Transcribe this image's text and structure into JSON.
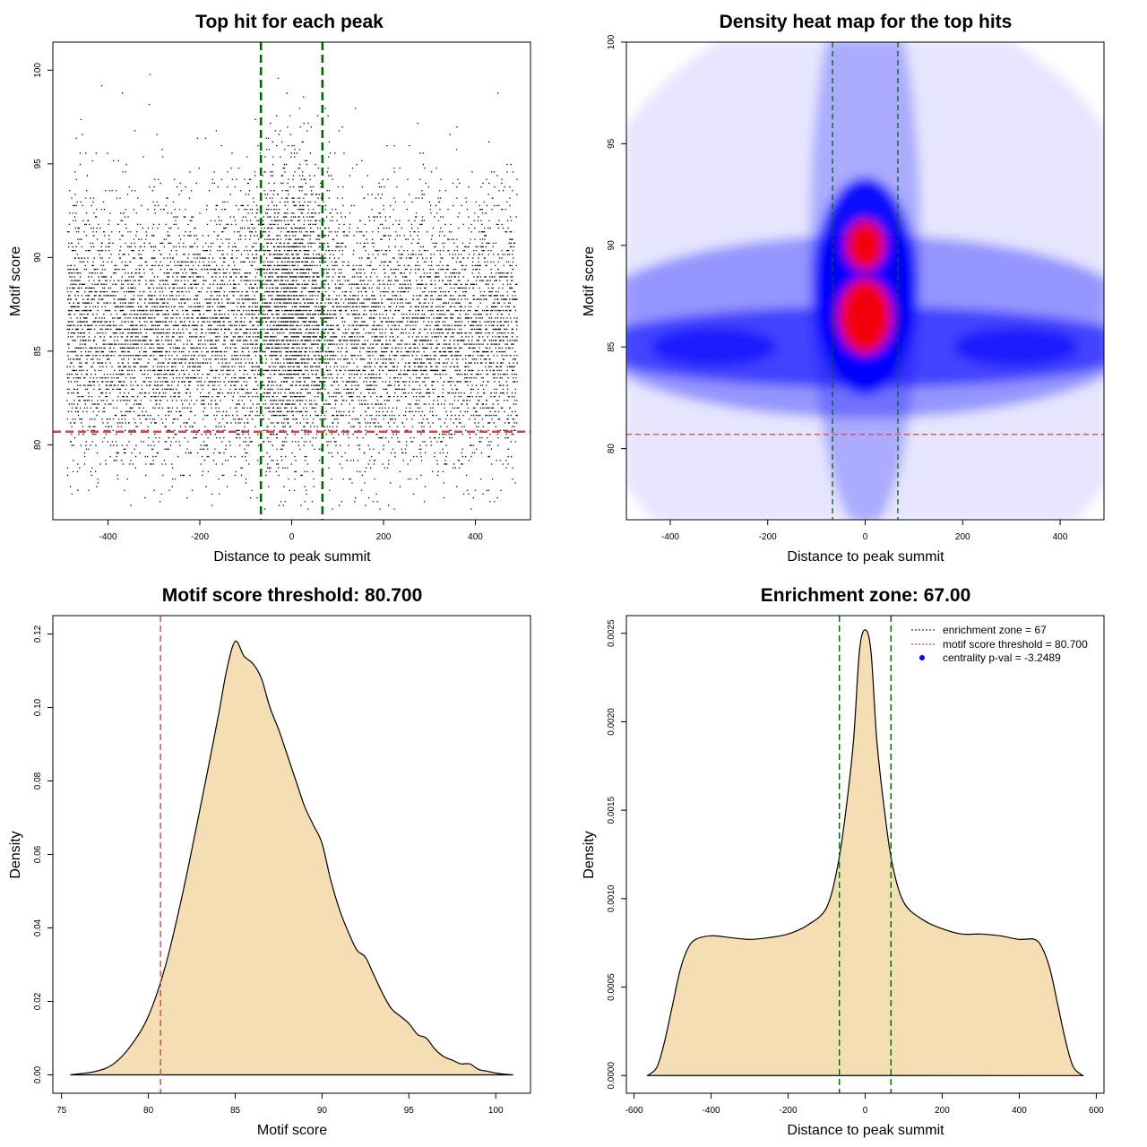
{
  "colors": {
    "threshold_line": "#e04040",
    "zone_line": "#006400",
    "density_fill": "#f5deb3",
    "heat_low": "#ffffff",
    "heat_mid": "#0000ff",
    "heat_high": "#ff0000",
    "points": "#000000",
    "legend_point": "#0000ff"
  },
  "chart_data": [
    {
      "id": "scatter",
      "type": "scatter",
      "title": "Top hit for each peak",
      "xlabel": "Distance to peak summit",
      "ylabel": "Motif score",
      "xlim": [
        -520,
        520
      ],
      "ylim": [
        76,
        101.5
      ],
      "xticks": [
        "-400",
        "-200",
        "0",
        "200",
        "400"
      ],
      "xtick_values": [
        -400,
        -200,
        0,
        200,
        400
      ],
      "yticks": [
        "80",
        "85",
        "90",
        "95",
        "100"
      ],
      "ytick_values": [
        80,
        85,
        90,
        95,
        100
      ],
      "point_distribution": {
        "x_range": [
          -490,
          490
        ],
        "score_peak": 86,
        "score_sd": 3.5,
        "center_enrichment_sd": 40
      },
      "hlines": [
        80.7
      ],
      "vlines": [
        -67,
        67
      ]
    },
    {
      "id": "heatmap",
      "type": "heatmap",
      "title": "Density heat map for the top hits",
      "xlabel": "Distance to peak summit",
      "ylabel": "Motif score",
      "xlim": [
        -490,
        490
      ],
      "ylim": [
        76.5,
        100
      ],
      "xticks": [
        "-400",
        "-200",
        "0",
        "200",
        "400"
      ],
      "xtick_values": [
        -400,
        -200,
        0,
        200,
        400
      ],
      "yticks": [
        "80",
        "85",
        "90",
        "95",
        "100"
      ],
      "ytick_values": [
        80,
        85,
        90,
        95,
        100
      ],
      "density_hotspots": [
        {
          "x": 0,
          "score": 86.5,
          "intensity": "high"
        },
        {
          "x": 0,
          "score": 90,
          "intensity": "high"
        },
        {
          "x": -310,
          "score": 85,
          "intensity": "medium"
        },
        {
          "x": 310,
          "score": 85,
          "intensity": "medium"
        }
      ],
      "hlines": [
        80.7
      ],
      "vlines": [
        -67,
        67
      ]
    },
    {
      "id": "score_density",
      "type": "area",
      "title": "Motif score threshold: 80.700",
      "xlabel": "Motif score",
      "ylabel": "Density",
      "xlim": [
        74.5,
        102
      ],
      "ylim": [
        -0.005,
        0.125
      ],
      "xticks": [
        "75",
        "80",
        "85",
        "90",
        "95",
        "100"
      ],
      "xtick_values": [
        75,
        80,
        85,
        90,
        95,
        100
      ],
      "yticks": [
        "0.00",
        "0.02",
        "0.04",
        "0.06",
        "0.08",
        "0.10",
        "0.12"
      ],
      "ytick_values": [
        0,
        0.02,
        0.04,
        0.06,
        0.08,
        0.1,
        0.12
      ],
      "x": [
        75.5,
        77,
        78,
        79,
        80,
        81,
        82,
        83,
        84,
        84.5,
        85,
        85.5,
        86,
        86.5,
        87,
        87.5,
        88,
        88.5,
        89,
        89.5,
        90,
        90.5,
        91,
        91.5,
        92,
        92.5,
        93,
        93.5,
        94,
        94.5,
        95,
        95.5,
        96,
        96.5,
        97,
        97.5,
        98,
        98.5,
        99,
        99.5,
        100,
        100.5,
        101
      ],
      "values": [
        0,
        0.001,
        0.003,
        0.008,
        0.016,
        0.03,
        0.05,
        0.073,
        0.097,
        0.11,
        0.118,
        0.114,
        0.112,
        0.108,
        0.1,
        0.094,
        0.087,
        0.08,
        0.073,
        0.068,
        0.063,
        0.053,
        0.045,
        0.039,
        0.034,
        0.032,
        0.027,
        0.022,
        0.018,
        0.016,
        0.014,
        0.011,
        0.01,
        0.007,
        0.005,
        0.004,
        0.003,
        0.003,
        0.0015,
        0.001,
        0.0005,
        0.0002,
        0
      ],
      "vlines": [
        80.7
      ]
    },
    {
      "id": "distance_density",
      "type": "area",
      "title": "Enrichment zone: 67.00",
      "xlabel": "Distance to peak summit",
      "ylabel": "Density",
      "xlim": [
        -620,
        620
      ],
      "ylim": [
        -0.0001,
        0.0026
      ],
      "xticks": [
        "-600",
        "-400",
        "-200",
        "0",
        "200",
        "400",
        "600"
      ],
      "xtick_values": [
        -600,
        -400,
        -200,
        0,
        200,
        400,
        600
      ],
      "yticks": [
        "0.0000",
        "0.0005",
        "0.0010",
        "0.0015",
        "0.0020",
        "0.0025"
      ],
      "ytick_values": [
        0,
        0.0005,
        0.001,
        0.0015,
        0.002,
        0.0025
      ],
      "x": [
        -565,
        -540,
        -520,
        -500,
        -480,
        -460,
        -440,
        -400,
        -350,
        -300,
        -250,
        -200,
        -150,
        -100,
        -70,
        -50,
        -30,
        -15,
        0,
        15,
        30,
        50,
        70,
        100,
        150,
        200,
        250,
        300,
        350,
        400,
        440,
        460,
        480,
        500,
        520,
        540,
        565
      ],
      "values": [
        0,
        5e-05,
        0.0002,
        0.0004,
        0.0006,
        0.00072,
        0.00077,
        0.00079,
        0.00078,
        0.00077,
        0.00078,
        0.0008,
        0.00085,
        0.00095,
        0.0012,
        0.0015,
        0.0019,
        0.0024,
        0.00252,
        0.0024,
        0.0019,
        0.0015,
        0.0012,
        0.00098,
        0.00088,
        0.00083,
        0.0008,
        0.0008,
        0.00079,
        0.00077,
        0.00077,
        0.00072,
        0.0006,
        0.0004,
        0.0002,
        5e-05,
        0
      ],
      "vlines": [
        -67,
        67
      ],
      "legend": [
        {
          "label": "enrichment zone = 67",
          "kind": "dotted-line",
          "color": "#006400"
        },
        {
          "label": "motif score threshold = 80.700",
          "kind": "dotted-line",
          "color": "#e04040"
        },
        {
          "label": "centrality p-val = -3.2489",
          "kind": "point",
          "color": "#0000ff"
        }
      ]
    }
  ]
}
